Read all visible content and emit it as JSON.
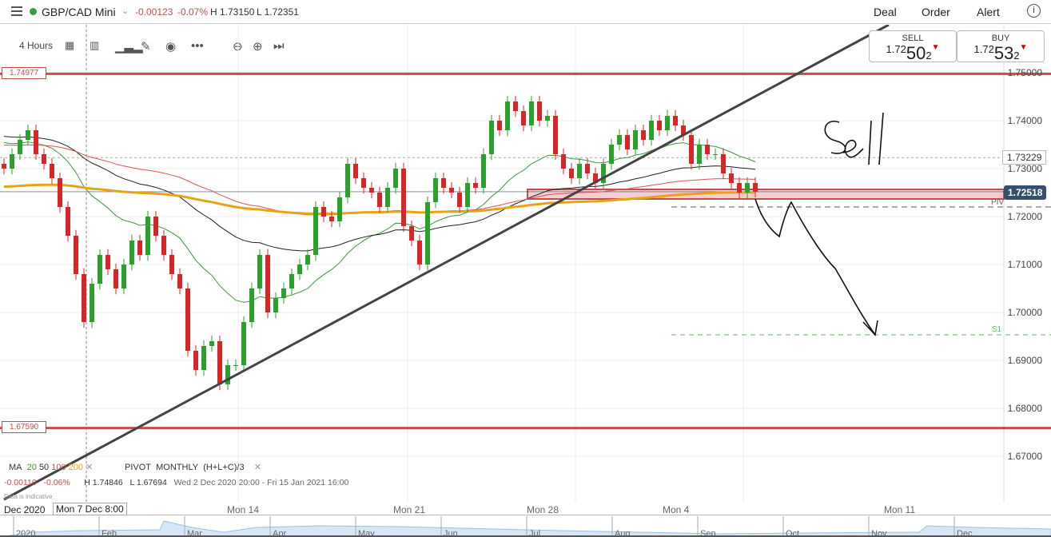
{
  "header": {
    "title": "GBP/CAD Mini",
    "change": "-0.00123",
    "change_pct": "-0.07%",
    "high": "H 1.73150",
    "low": "L 1.72351",
    "menu": [
      "Deal",
      "Order",
      "Alert"
    ],
    "status_color": "#2e9d46"
  },
  "toolbar": {
    "timeframe": "4 Hours",
    "icons": [
      "calendar-icon",
      "candle-type-icon",
      "bar-chart-icon",
      "pencil-icon",
      "eye-icon",
      "more-icon",
      "zoom-out-icon",
      "zoom-in-icon",
      "skip-to-end-icon"
    ]
  },
  "quote": {
    "sell_label": "SELL",
    "sell_prefix": "1.72",
    "sell_big": "50",
    "sell_small": "2",
    "buy_label": "BUY",
    "buy_prefix": "1.72",
    "buy_big": "53",
    "buy_small": "2"
  },
  "levels": {
    "upper": "1.74977",
    "lower": "1.67590",
    "current": "1.72518",
    "dashed": "1.73229",
    "piv_label": "PIV",
    "s1_label": "S1"
  },
  "yaxis": [
    "1.75000",
    "1.74000",
    "1.73000",
    "1.72000",
    "1.71000",
    "1.70000",
    "1.69000",
    "1.68000",
    "1.67000"
  ],
  "xaxis": {
    "start": "Dec 2020",
    "cursor": "Mon 7 Dec 8:00",
    "labels": [
      "Mon 14",
      "Mon 21",
      "Mon 28",
      "Mon 4",
      "Mon 11"
    ]
  },
  "indicators": {
    "ma": "MA",
    "ma_periods": [
      "20",
      "50",
      "100",
      "200"
    ],
    "ma_colors": [
      "#3a9a3a",
      "#222222",
      "#d9534f",
      "#e8a317"
    ],
    "pivot": "PIVOT",
    "pivot_period": "MONTHLY",
    "pivot_formula": "(H+L+C)/3"
  },
  "stats": {
    "change": "-0.00110",
    "change_pct": "-0.06%",
    "high": "H 1.74846",
    "low": "L 1.67694",
    "range": "Wed 2 Dec 2020 20:00 - Fri 15 Jan 2021 16:00",
    "note": "Data is indicative"
  },
  "navigator": [
    "2020",
    "Feb",
    "Mar",
    "Apr",
    "May",
    "Jun",
    "Jul",
    "Aug",
    "Sep",
    "Oct",
    "Nov",
    "Dec"
  ],
  "chart_data": {
    "type": "candlestick",
    "ylim": [
      1.665,
      1.752
    ],
    "closes": [
      1.73,
      1.733,
      1.736,
      1.738,
      1.733,
      1.731,
      1.728,
      1.722,
      1.716,
      1.708,
      1.698,
      1.706,
      1.712,
      1.709,
      1.705,
      1.71,
      1.715,
      1.712,
      1.72,
      1.716,
      1.712,
      1.708,
      1.705,
      1.692,
      1.688,
      1.693,
      1.694,
      1.685,
      1.689,
      1.689,
      1.698,
      1.705,
      1.712,
      1.7,
      1.703,
      1.705,
      1.708,
      1.71,
      1.712,
      1.722,
      1.72,
      1.719,
      1.724,
      1.731,
      1.728,
      1.726,
      1.725,
      1.722,
      1.726,
      1.73,
      1.718,
      1.715,
      1.71,
      1.723,
      1.728,
      1.726,
      1.725,
      1.722,
      1.727,
      1.726,
      1.733,
      1.74,
      1.738,
      1.744,
      1.742,
      1.739,
      1.744,
      1.74,
      1.741,
      1.733,
      1.73,
      1.728,
      1.731,
      1.729,
      1.727,
      1.731,
      1.735,
      1.737,
      1.734,
      1.738,
      1.736,
      1.74,
      1.738,
      1.741,
      1.739,
      1.737,
      1.731,
      1.735,
      1.733,
      1.733,
      1.729,
      1.727,
      1.725,
      1.727,
      1.7252
    ],
    "colors": {
      "up": "#2ca02c",
      "down": "#d62728"
    }
  }
}
